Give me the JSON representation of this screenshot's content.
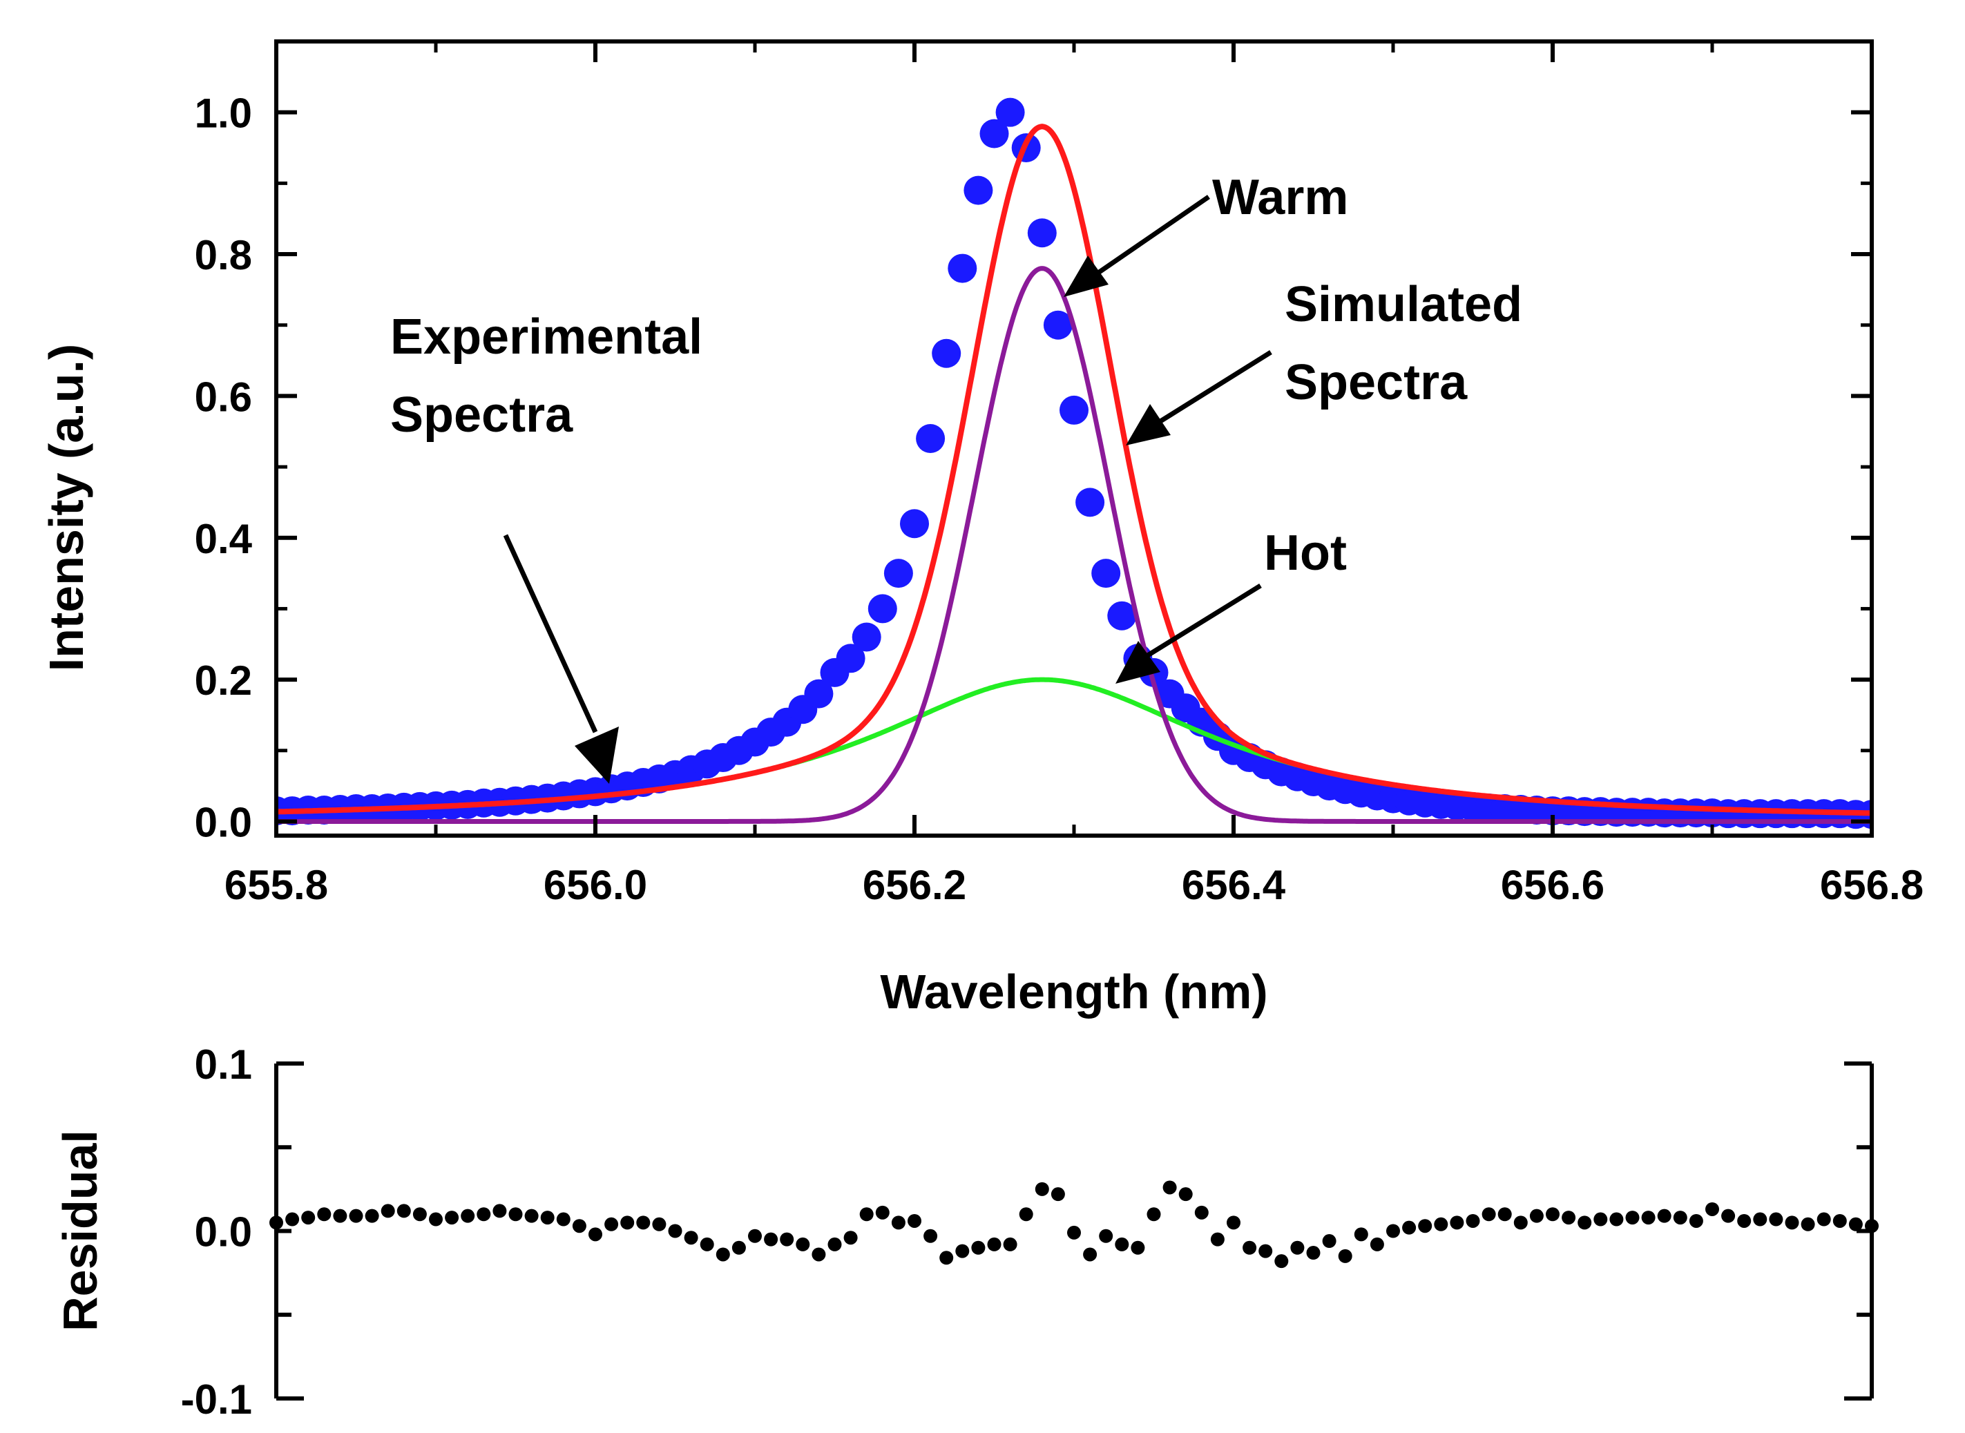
{
  "chart_data": [
    {
      "type": "line",
      "panel": "main",
      "xlabel": "Wavelength (nm)",
      "ylabel": "Intensity (a.u.)",
      "xlim": [
        655.8,
        656.8
      ],
      "ylim": [
        -0.02,
        1.1
      ],
      "xticks": [
        655.8,
        656.0,
        656.2,
        656.4,
        656.6,
        656.8
      ],
      "xtick_labels": [
        "655.8",
        "656.0",
        "656.2",
        "656.4",
        "656.6",
        "656.8"
      ],
      "yticks": [
        0.0,
        0.2,
        0.4,
        0.6,
        0.8,
        1.0
      ],
      "ytick_labels": [
        "0.0",
        "0.2",
        "0.4",
        "0.6",
        "0.8",
        "1.0"
      ],
      "series": [
        {
          "name": "Experimental Spectra",
          "style": "markers",
          "color": "#1a1aff",
          "x": [
            655.8,
            655.81,
            655.82,
            655.83,
            655.84,
            655.85,
            655.86,
            655.87,
            655.88,
            655.89,
            655.9,
            655.91,
            655.92,
            655.93,
            655.94,
            655.95,
            655.96,
            655.97,
            655.98,
            655.99,
            656.0,
            656.01,
            656.02,
            656.03,
            656.04,
            656.05,
            656.06,
            656.07,
            656.08,
            656.09,
            656.1,
            656.11,
            656.12,
            656.13,
            656.14,
            656.15,
            656.16,
            656.17,
            656.18,
            656.19,
            656.2,
            656.21,
            656.22,
            656.23,
            656.24,
            656.25,
            656.26,
            656.27,
            656.28,
            656.29,
            656.3,
            656.31,
            656.32,
            656.33,
            656.34,
            656.35,
            656.36,
            656.37,
            656.38,
            656.39,
            656.4,
            656.41,
            656.42,
            656.43,
            656.44,
            656.45,
            656.46,
            656.47,
            656.48,
            656.49,
            656.5,
            656.51,
            656.52,
            656.53,
            656.54,
            656.55,
            656.56,
            656.57,
            656.58,
            656.59,
            656.6,
            656.61,
            656.62,
            656.63,
            656.64,
            656.65,
            656.66,
            656.67,
            656.68,
            656.69,
            656.7,
            656.71,
            656.72,
            656.73,
            656.74,
            656.75,
            656.76,
            656.77,
            656.78,
            656.79,
            656.8
          ],
          "y": [
            0.015,
            0.015,
            0.016,
            0.016,
            0.017,
            0.018,
            0.018,
            0.019,
            0.02,
            0.021,
            0.022,
            0.023,
            0.024,
            0.026,
            0.027,
            0.029,
            0.031,
            0.033,
            0.036,
            0.039,
            0.042,
            0.046,
            0.05,
            0.055,
            0.06,
            0.066,
            0.073,
            0.081,
            0.09,
            0.1,
            0.112,
            0.126,
            0.14,
            0.158,
            0.18,
            0.21,
            0.23,
            0.26,
            0.3,
            0.35,
            0.42,
            0.54,
            0.66,
            0.78,
            0.89,
            0.97,
            1.0,
            0.95,
            0.83,
            0.7,
            0.58,
            0.45,
            0.35,
            0.29,
            0.23,
            0.21,
            0.18,
            0.16,
            0.14,
            0.12,
            0.1,
            0.09,
            0.08,
            0.07,
            0.063,
            0.056,
            0.05,
            0.045,
            0.04,
            0.036,
            0.032,
            0.029,
            0.026,
            0.024,
            0.022,
            0.02,
            0.019,
            0.018,
            0.017,
            0.016,
            0.015,
            0.015,
            0.014,
            0.014,
            0.013,
            0.013,
            0.013,
            0.012,
            0.012,
            0.012,
            0.012,
            0.011,
            0.011,
            0.011,
            0.011,
            0.011,
            0.011,
            0.011,
            0.011,
            0.01,
            0.01
          ]
        },
        {
          "name": "Simulated Spectra",
          "style": "line",
          "color": "#ff1a1a",
          "model": "sum",
          "peak": 0.98,
          "center": 656.28
        },
        {
          "name": "Warm",
          "style": "line",
          "color": "#8b1a99",
          "model": "gaussian",
          "amplitude": 0.78,
          "center": 656.28,
          "sigma": 0.042
        },
        {
          "name": "Hot",
          "style": "line",
          "color": "#22ee22",
          "model": "lorentzian",
          "amplitude": 0.2,
          "center": 656.28,
          "hwhm": 0.13
        }
      ],
      "annotations": [
        {
          "target": "Warm",
          "text": "Warm"
        },
        {
          "target": "Simulated Spectra",
          "text_lines": [
            "Simulated",
            "Spectra"
          ]
        },
        {
          "target": "Experimental Spectra",
          "text_lines": [
            "Experimental",
            "Spectra"
          ]
        },
        {
          "target": "Hot",
          "text": "Hot"
        }
      ]
    },
    {
      "type": "scatter",
      "panel": "residual",
      "ylabel": "Residual",
      "xlim": [
        655.8,
        656.8
      ],
      "ylim": [
        -0.1,
        0.1
      ],
      "yticks": [
        -0.1,
        -0.05,
        0.0,
        0.05,
        0.1
      ],
      "ytick_labels": [
        "-0.1",
        "",
        "0.0",
        "",
        "0.1"
      ],
      "series": [
        {
          "name": "Residual",
          "color": "#000000",
          "x": [
            655.8,
            655.81,
            655.82,
            655.83,
            655.84,
            655.85,
            655.86,
            655.87,
            655.88,
            655.89,
            655.9,
            655.91,
            655.92,
            655.93,
            655.94,
            655.95,
            655.96,
            655.97,
            655.98,
            655.99,
            656.0,
            656.01,
            656.02,
            656.03,
            656.04,
            656.05,
            656.06,
            656.07,
            656.08,
            656.09,
            656.1,
            656.11,
            656.12,
            656.13,
            656.14,
            656.15,
            656.16,
            656.17,
            656.18,
            656.19,
            656.2,
            656.21,
            656.22,
            656.23,
            656.24,
            656.25,
            656.26,
            656.27,
            656.28,
            656.29,
            656.3,
            656.31,
            656.32,
            656.33,
            656.34,
            656.35,
            656.36,
            656.37,
            656.38,
            656.39,
            656.4,
            656.41,
            656.42,
            656.43,
            656.44,
            656.45,
            656.46,
            656.47,
            656.48,
            656.49,
            656.5,
            656.51,
            656.52,
            656.53,
            656.54,
            656.55,
            656.56,
            656.57,
            656.58,
            656.59,
            656.6,
            656.61,
            656.62,
            656.63,
            656.64,
            656.65,
            656.66,
            656.67,
            656.68,
            656.69,
            656.7,
            656.71,
            656.72,
            656.73,
            656.74,
            656.75,
            656.76,
            656.77,
            656.78,
            656.79,
            656.8
          ],
          "y": [
            0.005,
            0.007,
            0.008,
            0.01,
            0.009,
            0.009,
            0.009,
            0.012,
            0.012,
            0.01,
            0.007,
            0.008,
            0.009,
            0.01,
            0.012,
            0.01,
            0.009,
            0.008,
            0.007,
            0.003,
            -0.002,
            0.004,
            0.005,
            0.005,
            0.004,
            0.0,
            -0.004,
            -0.008,
            -0.014,
            -0.01,
            -0.003,
            -0.005,
            -0.005,
            -0.008,
            -0.014,
            -0.008,
            -0.004,
            0.01,
            0.011,
            0.005,
            0.006,
            -0.003,
            -0.016,
            -0.012,
            -0.01,
            -0.008,
            -0.008,
            0.01,
            0.025,
            0.022,
            -0.001,
            -0.014,
            -0.003,
            -0.008,
            -0.01,
            0.01,
            0.026,
            0.022,
            0.011,
            -0.005,
            0.005,
            -0.01,
            -0.012,
            -0.018,
            -0.01,
            -0.013,
            -0.006,
            -0.015,
            -0.002,
            -0.008,
            0.0,
            0.002,
            0.003,
            0.004,
            0.005,
            0.006,
            0.01,
            0.01,
            0.005,
            0.009,
            0.01,
            0.008,
            0.005,
            0.007,
            0.007,
            0.008,
            0.008,
            0.009,
            0.008,
            0.006,
            0.013,
            0.009,
            0.006,
            0.007,
            0.007,
            0.005,
            0.004,
            0.007,
            0.006,
            0.004,
            0.003
          ]
        }
      ]
    }
  ]
}
